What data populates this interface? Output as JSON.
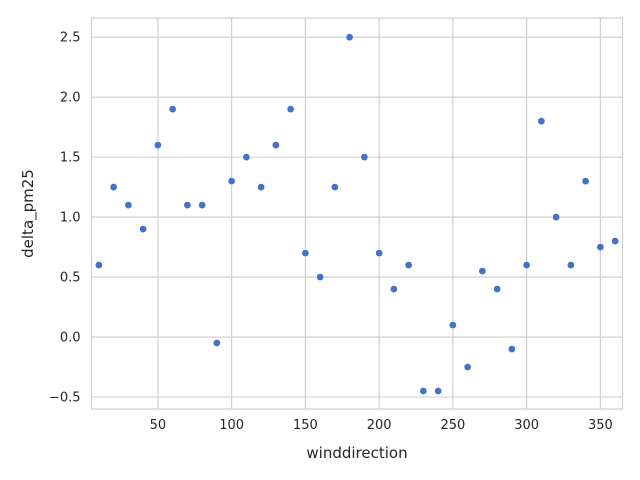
{
  "chart_data": {
    "type": "scatter",
    "xlabel": "winddirection",
    "ylabel": "delta_pm25",
    "xlim": [
      5,
      365
    ],
    "ylim": [
      -0.6,
      2.66
    ],
    "xticks": [
      50,
      100,
      150,
      200,
      250,
      300,
      350
    ],
    "yticks": [
      -0.5,
      0.0,
      0.5,
      1.0,
      1.5,
      2.0,
      2.5
    ],
    "xtick_labels": [
      "50",
      "100",
      "150",
      "200",
      "250",
      "300",
      "350"
    ],
    "ytick_labels": [
      "−0.5",
      "0.0",
      "0.5",
      "1.0",
      "1.5",
      "2.0",
      "2.5"
    ],
    "grid": true,
    "marker_color": "#4472c4",
    "series": [
      {
        "x": [
          10,
          20,
          30,
          40,
          50,
          60,
          70,
          80,
          90,
          100,
          110,
          120,
          130,
          140,
          150,
          160,
          170,
          180,
          190,
          200,
          210,
          220,
          230,
          240,
          250,
          260,
          270,
          280,
          290,
          300,
          310,
          320,
          330,
          340,
          350,
          360
        ],
        "y": [
          0.6,
          1.25,
          1.1,
          0.9,
          1.6,
          1.9,
          1.1,
          1.1,
          -0.05,
          1.3,
          1.5,
          1.25,
          1.6,
          1.9,
          0.7,
          0.5,
          1.25,
          2.5,
          1.5,
          0.7,
          0.4,
          0.6,
          -0.45,
          -0.45,
          0.1,
          -0.25,
          0.55,
          0.4,
          -0.1,
          0.6,
          1.8,
          1.0,
          0.6,
          1.3,
          0.75,
          0.8
        ]
      }
    ]
  }
}
